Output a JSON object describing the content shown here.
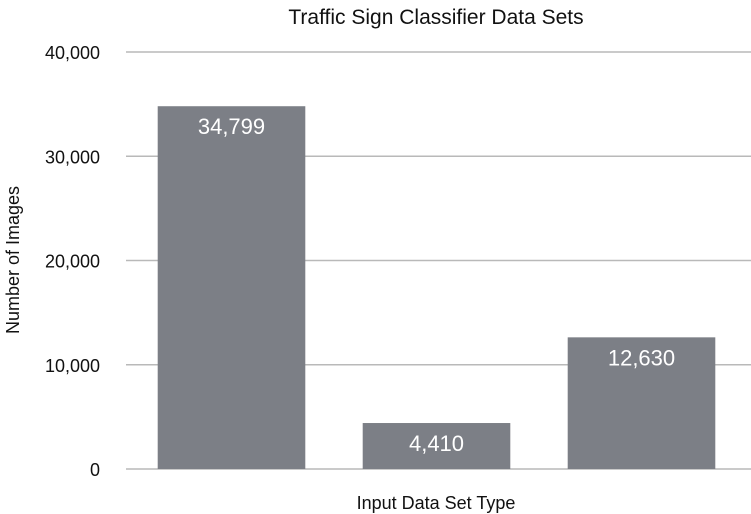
{
  "chart_data": {
    "type": "bar",
    "title": "Traffic Sign Classifier Data Sets",
    "xlabel": "Input Data Set Type",
    "ylabel": "Number of Images",
    "categories": [
      "",
      "",
      ""
    ],
    "values": [
      34799,
      4410,
      12630
    ],
    "value_labels": [
      "34,799",
      "4,410",
      "12,630"
    ],
    "ylim": [
      0,
      40000
    ],
    "yticks": [
      0,
      10000,
      20000,
      30000,
      40000
    ],
    "ytick_labels": [
      "0",
      "10,000",
      "20,000",
      "30,000",
      "40,000"
    ],
    "grid": true,
    "legend": "none",
    "bar_color": "#7c7f86",
    "grid_color": "#b9b9b9"
  }
}
